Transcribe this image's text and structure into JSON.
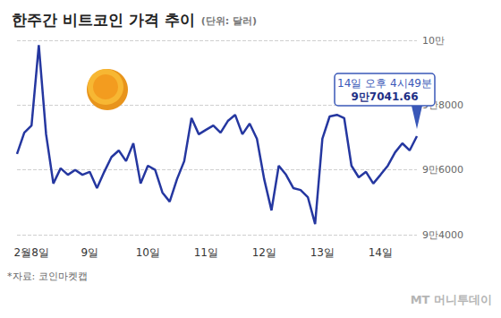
{
  "chart_data": {
    "type": "line",
    "title": "한주간 비트코인 가격 추이",
    "subtitle": "(단위: 달러)",
    "source": "*자료: 코인마켓캡",
    "credit": "MT 머니투데이",
    "color": "#2537a0",
    "grid": true,
    "categories": [
      null,
      null,
      "2월8일",
      null,
      null,
      null,
      null,
      null,
      null,
      null,
      "9일",
      null,
      null,
      null,
      null,
      null,
      null,
      null,
      "10일",
      null,
      null,
      null,
      null,
      null,
      null,
      null,
      "11일",
      null,
      null,
      null,
      null,
      null,
      null,
      null,
      "12일",
      null,
      null,
      null,
      null,
      null,
      null,
      null,
      "13일",
      null,
      null,
      null,
      null,
      null,
      null,
      null,
      "14일",
      null,
      null,
      null,
      null,
      null
    ],
    "values": [
      96490,
      97150,
      97370,
      99850,
      97100,
      95580,
      96050,
      95850,
      96000,
      95850,
      95940,
      95440,
      95940,
      96400,
      96600,
      96270,
      96820,
      95580,
      96130,
      96000,
      95300,
      95020,
      95710,
      96270,
      97600,
      97100,
      97240,
      97370,
      97150,
      97510,
      97700,
      97100,
      97430,
      96960,
      95710,
      94750,
      96130,
      95850,
      95440,
      95380,
      95160,
      94330,
      96960,
      97650,
      97700,
      97600,
      96130,
      95770,
      95940,
      95580,
      95850,
      96130,
      96540,
      96820,
      96600,
      97041.66
    ],
    "ylim": [
      94000,
      100000
    ],
    "yticks": [
      {
        "value": 94000,
        "label": "9만4000"
      },
      {
        "value": 96000,
        "label": "9만6000"
      },
      {
        "value": 98000,
        "label": "9만8000"
      },
      {
        "value": 100000,
        "label": "10만"
      }
    ],
    "annotation": {
      "label": "14일 오후 4시49분",
      "value": 97041.66,
      "value_label": "9만7041.66"
    }
  }
}
